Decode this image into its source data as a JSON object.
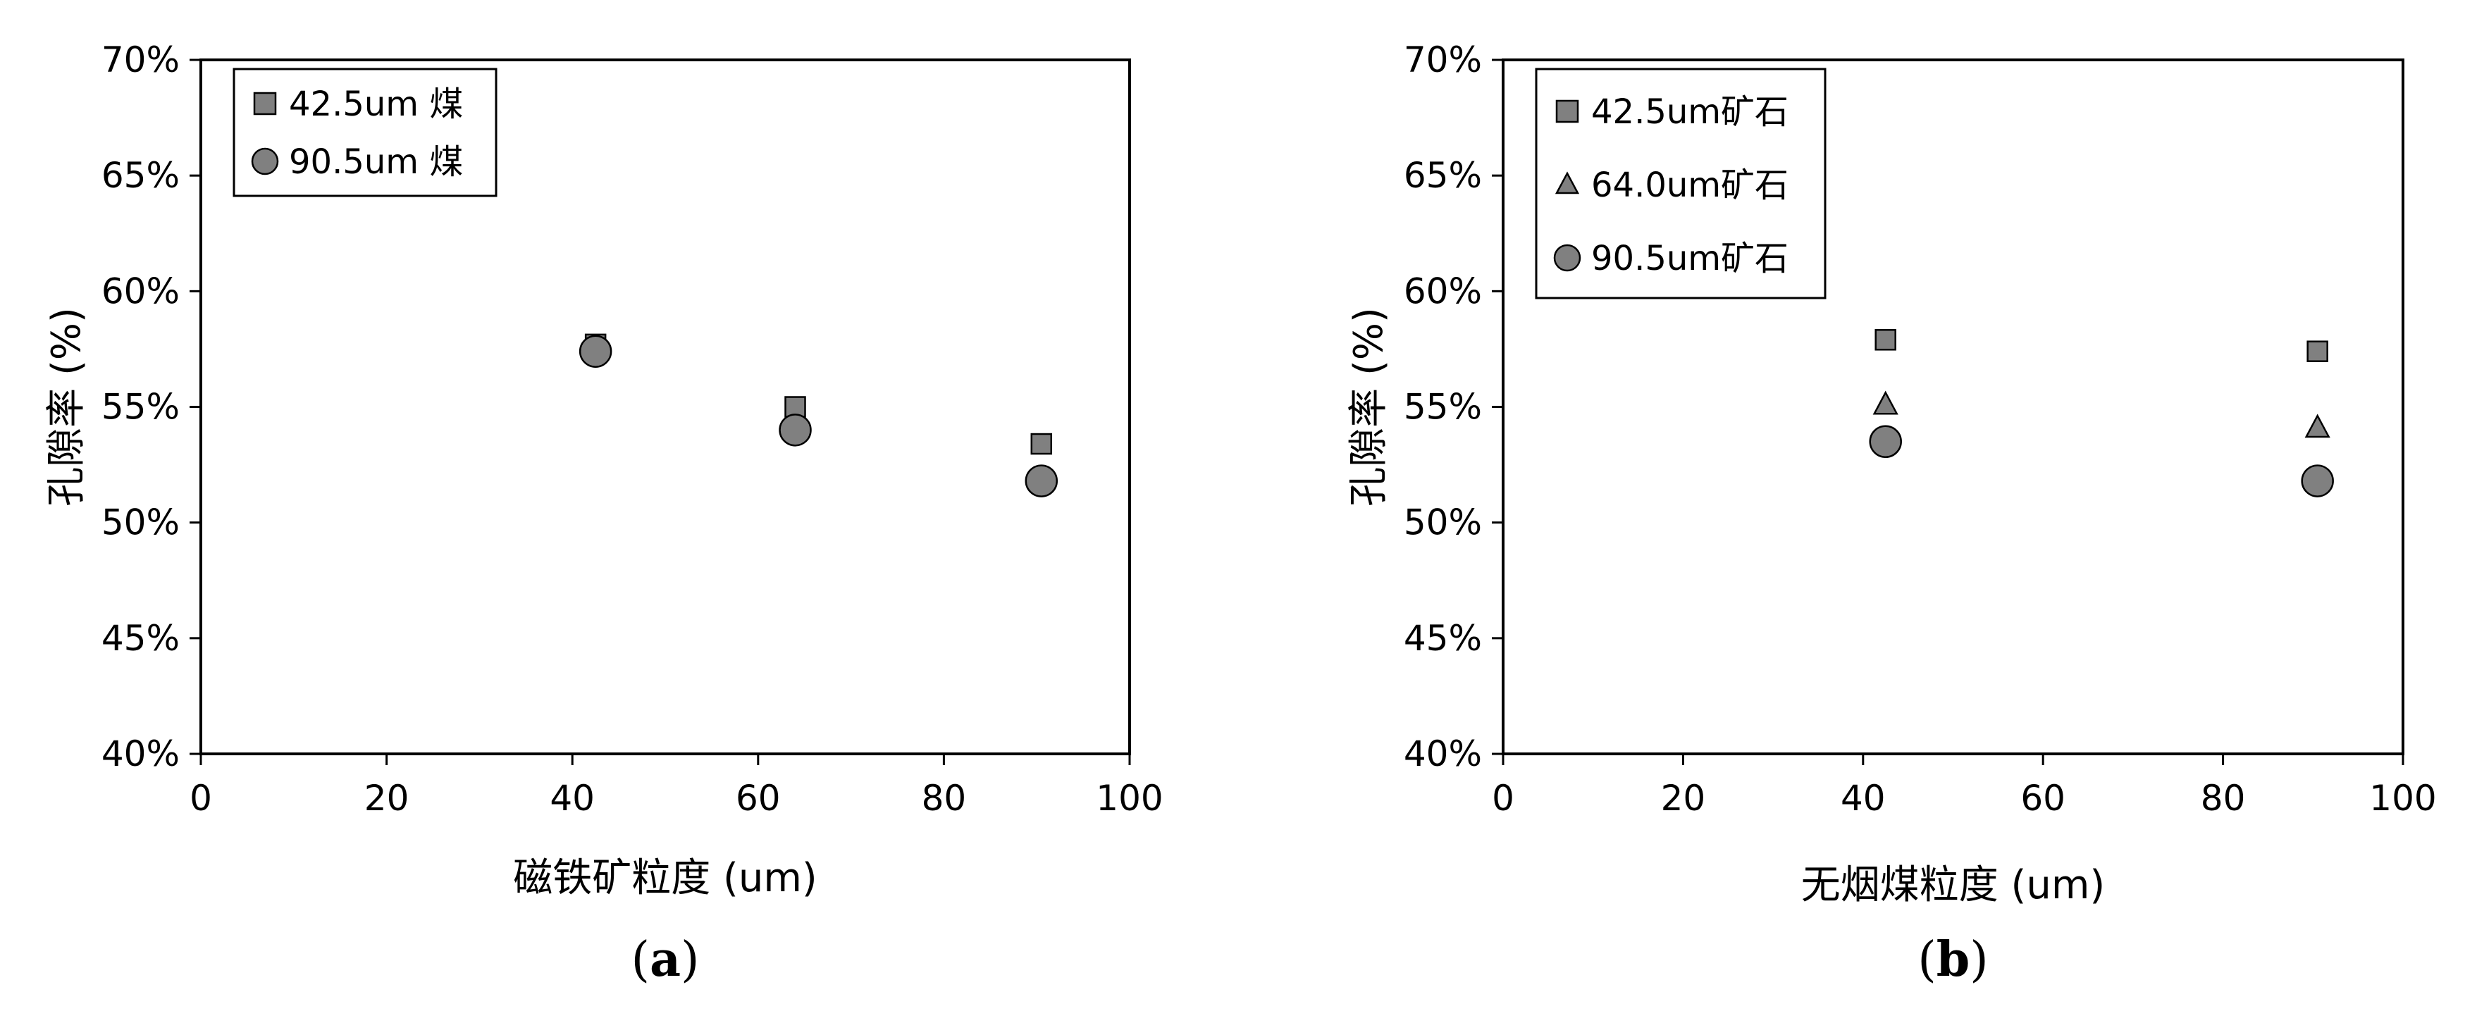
{
  "chart_data": [
    {
      "type": "scatter",
      "panel_label": "a",
      "xlabel": "磁铁矿粒度 (um)",
      "ylabel": "孔隙率 (%)",
      "xlim": [
        0,
        100
      ],
      "ylim": [
        40,
        70
      ],
      "xticks": [
        0,
        20,
        40,
        60,
        80,
        100
      ],
      "xtick_labels": [
        "0",
        "20",
        "40",
        "60",
        "80",
        "100"
      ],
      "yticks": [
        40,
        45,
        50,
        55,
        60,
        65,
        70
      ],
      "ytick_labels": [
        "40%",
        "45%",
        "50%",
        "55%",
        "60%",
        "65%",
        "70%"
      ],
      "grid": false,
      "legend_position": "top-left",
      "series": [
        {
          "name": "42.5um 煤",
          "marker": "square",
          "x": [
            42.5,
            64.0,
            90.5
          ],
          "y": [
            57.7,
            55.0,
            53.4
          ]
        },
        {
          "name": "90.5um 煤",
          "marker": "circle",
          "x": [
            42.5,
            64.0,
            90.5
          ],
          "y": [
            57.4,
            54.0,
            51.8
          ]
        }
      ]
    },
    {
      "type": "scatter",
      "panel_label": "b",
      "xlabel": "无烟煤粒度 (um)",
      "ylabel": "孔隙率 (%)",
      "xlim": [
        0,
        100
      ],
      "ylim": [
        40,
        70
      ],
      "xticks": [
        0,
        20,
        40,
        60,
        80,
        100
      ],
      "xtick_labels": [
        "0",
        "20",
        "40",
        "60",
        "80",
        "100"
      ],
      "yticks": [
        40,
        45,
        50,
        55,
        60,
        65,
        70
      ],
      "ytick_labels": [
        "40%",
        "45%",
        "50%",
        "55%",
        "60%",
        "65%",
        "70%"
      ],
      "grid": false,
      "legend_position": "top-left",
      "series": [
        {
          "name": "42.5um矿石",
          "marker": "square",
          "x": [
            42.5,
            90.5
          ],
          "y": [
            57.9,
            57.4
          ]
        },
        {
          "name": "64.0um矿石",
          "marker": "triangle",
          "x": [
            42.5,
            90.5
          ],
          "y": [
            55.1,
            54.1
          ]
        },
        {
          "name": "90.5um矿石",
          "marker": "circle",
          "x": [
            42.5,
            90.5
          ],
          "y": [
            53.5,
            51.8
          ]
        }
      ]
    }
  ],
  "colors": {
    "marker_fill": "#808080",
    "marker_stroke": "#000000",
    "axis": "#000000",
    "text": "#000000"
  }
}
